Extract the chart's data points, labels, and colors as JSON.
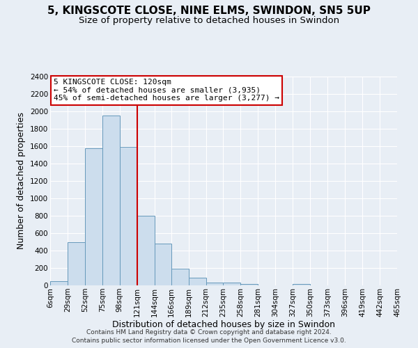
{
  "title": "5, KINGSCOTE CLOSE, NINE ELMS, SWINDON, SN5 5UP",
  "subtitle": "Size of property relative to detached houses in Swindon",
  "xlabel": "Distribution of detached houses by size in Swindon",
  "ylabel": "Number of detached properties",
  "bar_color": "#ccdded",
  "bar_edge_color": "#6699bb",
  "bin_edges": [
    6,
    29,
    52,
    75,
    98,
    121,
    144,
    166,
    189,
    212,
    235,
    258,
    281,
    304,
    327,
    350,
    373,
    396,
    419,
    442,
    465
  ],
  "bin_labels": [
    "6sqm",
    "29sqm",
    "52sqm",
    "75sqm",
    "98sqm",
    "121sqm",
    "144sqm",
    "166sqm",
    "189sqm",
    "212sqm",
    "235sqm",
    "258sqm",
    "281sqm",
    "304sqm",
    "327sqm",
    "350sqm",
    "373sqm",
    "396sqm",
    "419sqm",
    "442sqm",
    "465sqm"
  ],
  "bar_heights": [
    50,
    500,
    1575,
    1950,
    1590,
    800,
    480,
    190,
    90,
    35,
    30,
    20,
    0,
    0,
    20,
    0,
    0,
    0,
    0,
    0
  ],
  "vline_x": 121,
  "vline_color": "#cc0000",
  "ylim": [
    0,
    2400
  ],
  "yticks": [
    0,
    200,
    400,
    600,
    800,
    1000,
    1200,
    1400,
    1600,
    1800,
    2000,
    2200,
    2400
  ],
  "annotation_title": "5 KINGSCOTE CLOSE: 120sqm",
  "annotation_line1": "← 54% of detached houses are smaller (3,935)",
  "annotation_line2": "45% of semi-detached houses are larger (3,277) →",
  "annotation_box_facecolor": "#ffffff",
  "annotation_box_edgecolor": "#cc0000",
  "footer_line1": "Contains HM Land Registry data © Crown copyright and database right 2024.",
  "footer_line2": "Contains public sector information licensed under the Open Government Licence v3.0.",
  "background_color": "#e8eef5",
  "plot_background": "#e8eef5",
  "grid_color": "#ffffff",
  "title_fontsize": 11,
  "subtitle_fontsize": 9.5,
  "axis_label_fontsize": 9,
  "tick_fontsize": 7.5,
  "annot_fontsize": 8,
  "footer_fontsize": 6.5
}
